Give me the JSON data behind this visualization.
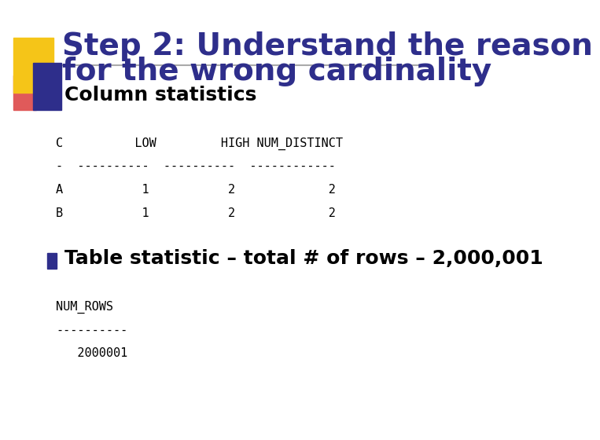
{
  "title_line1": "Step 2: Understand the reason",
  "title_line2": "for the wrong cardinality",
  "title_color": "#2E2E8B",
  "title_fontsize": 28,
  "bg_color": "#FFFFFF",
  "bullet_color": "#2E2E8B",
  "bullet1_text": "Column statistics",
  "bullet1_fontsize": 18,
  "table_header": "C          LOW         HIGH NUM_DISTINCT",
  "table_sep": "-  ----------  ----------  ------------",
  "table_row1": "A           1           2             2",
  "table_row2": "B           1           2             2",
  "table_fontsize": 11,
  "bullet2_text": "Table statistic – total # of rows – 2,000,001",
  "bullet2_fontsize": 18,
  "num_rows_header": "NUM_ROWS",
  "num_rows_sep": "----------",
  "num_rows_val": "   2000001",
  "mono_fontsize": 11,
  "line_color": "#AAAAAA",
  "yellow_color": "#F5C518",
  "red_color": "#E05A5A"
}
